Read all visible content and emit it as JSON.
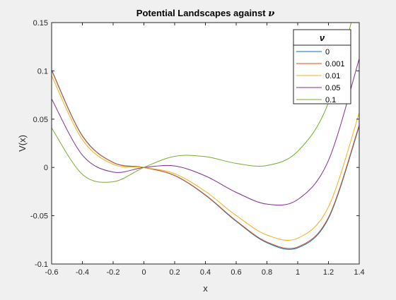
{
  "chart_data": {
    "type": "line",
    "title": "Potential Landscapes against",
    "title_symbol": "ν",
    "xlabel": "x",
    "ylabel": "V(x)",
    "xlim": [
      -0.6,
      1.4
    ],
    "ylim": [
      -0.1,
      0.15
    ],
    "x_ticks": [
      -0.6,
      -0.4,
      -0.2,
      0,
      0.2,
      0.4,
      0.6,
      0.8,
      1,
      1.2,
      1.4
    ],
    "x_tick_labels": [
      "-0.6",
      "-0.4",
      "-0.2",
      "0",
      "0.2",
      "0.4",
      "0.6",
      "0.8",
      "1",
      "1.2",
      "1.4"
    ],
    "y_ticks": [
      -0.1,
      -0.05,
      0,
      0.05,
      0.1,
      0.15
    ],
    "y_tick_labels": [
      "-0.1",
      "-0.05",
      "0",
      "0.05",
      "0.1",
      "0.15"
    ],
    "grid": false,
    "legend": {
      "title": "ν",
      "placement": "top-right"
    },
    "series": [
      {
        "name": "0",
        "color": "#0072BD",
        "x": [
          -0.6,
          -0.4,
          -0.2,
          0,
          0.2,
          0.4,
          0.6,
          0.8,
          1.0,
          1.2,
          1.4
        ],
        "y": [
          0.101,
          0.0328,
          0.0052,
          0,
          -0.0085,
          -0.0288,
          -0.0558,
          -0.078,
          -0.0833,
          -0.0528,
          0.0425
        ]
      },
      {
        "name": "0.001",
        "color": "#D95319",
        "x": [
          -0.6,
          -0.4,
          -0.2,
          0,
          0.2,
          0.4,
          0.6,
          0.8,
          1.0,
          1.2,
          1.4
        ],
        "y": [
          0.1004,
          0.0324,
          0.005,
          0,
          -0.0083,
          -0.0284,
          -0.0552,
          -0.0772,
          -0.0823,
          -0.0516,
          0.0439
        ]
      },
      {
        "name": "0.01",
        "color": "#EDB120",
        "x": [
          -0.6,
          -0.4,
          -0.2,
          0,
          0.2,
          0.4,
          0.6,
          0.8,
          1.0,
          1.2,
          1.4
        ],
        "y": [
          0.095,
          0.0288,
          0.0032,
          0,
          -0.0065,
          -0.0248,
          -0.0498,
          -0.07,
          -0.0733,
          -0.0408,
          0.0565
        ]
      },
      {
        "name": "0.05",
        "color": "#7E2F8E",
        "x": [
          -0.6,
          -0.4,
          -0.2,
          0,
          0.2,
          0.4,
          0.6,
          0.8,
          1.0,
          1.2,
          1.4
        ],
        "y": [
          0.071,
          0.0128,
          -0.0048,
          0,
          0.0015,
          -0.0088,
          -0.0258,
          -0.038,
          -0.0333,
          0.0072,
          0.1125
        ]
      },
      {
        "name": "0.1",
        "color": "#77AC30",
        "x": [
          -0.6,
          -0.4,
          -0.2,
          0,
          0.2,
          0.4,
          0.6,
          0.8,
          1.0,
          1.2,
          1.4
        ],
        "y": [
          0.041,
          -0.0072,
          -0.0148,
          0,
          0.0115,
          0.0112,
          0.0042,
          0.002,
          0.0167,
          0.0672,
          0.1825
        ]
      }
    ]
  }
}
